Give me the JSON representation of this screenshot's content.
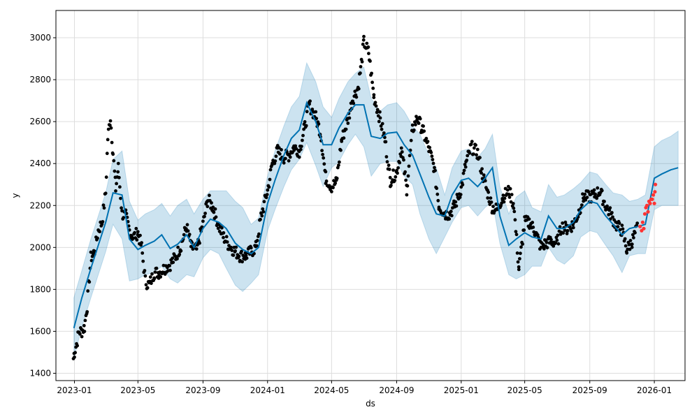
{
  "chart_data": {
    "type": "scatter",
    "xlabel": "ds",
    "ylabel": "y",
    "x_range": [
      "2022-11-27",
      "2026-02-28"
    ],
    "ylim": [
      1365,
      3130
    ],
    "grid": true,
    "x_ticks": [
      "2023-01",
      "2023-05",
      "2023-09",
      "2024-01",
      "2024-05",
      "2024-09",
      "2025-01",
      "2025-05",
      "2025-09",
      "2026-01"
    ],
    "y_ticks": [
      1400,
      1600,
      1800,
      2000,
      2200,
      2400,
      2600,
      2800,
      3000
    ],
    "colors": {
      "actual": "#000000",
      "recent": "#ff3333",
      "forecast": "#0072b2",
      "band": "#0072b2"
    },
    "forecast": {
      "dates": [
        "2022-12-31",
        "2023-01-15",
        "2023-02-01",
        "2023-02-15",
        "2023-03-01",
        "2023-03-15",
        "2023-04-01",
        "2023-04-15",
        "2023-05-01",
        "2023-05-15",
        "2023-06-01",
        "2023-06-15",
        "2023-07-01",
        "2023-07-15",
        "2023-08-01",
        "2023-08-15",
        "2023-09-01",
        "2023-09-15",
        "2023-10-01",
        "2023-10-15",
        "2023-11-01",
        "2023-11-15",
        "2023-12-01",
        "2023-12-15",
        "2024-01-01",
        "2024-01-15",
        "2024-02-01",
        "2024-02-15",
        "2024-03-01",
        "2024-03-15",
        "2024-04-01",
        "2024-04-15",
        "2024-05-01",
        "2024-05-15",
        "2024-06-01",
        "2024-06-15",
        "2024-07-01",
        "2024-07-15",
        "2024-08-01",
        "2024-08-15",
        "2024-09-01",
        "2024-09-15",
        "2024-10-01",
        "2024-10-15",
        "2024-11-01",
        "2024-11-15",
        "2024-12-01",
        "2024-12-15",
        "2025-01-01",
        "2025-01-15",
        "2025-02-01",
        "2025-02-15",
        "2025-03-01",
        "2025-03-15",
        "2025-04-01",
        "2025-04-15",
        "2025-05-01",
        "2025-05-15",
        "2025-06-01",
        "2025-06-15",
        "2025-07-01",
        "2025-07-15",
        "2025-08-01",
        "2025-08-15",
        "2025-09-01",
        "2025-09-15",
        "2025-10-01",
        "2025-10-15",
        "2025-11-01",
        "2025-11-15",
        "2025-12-01",
        "2025-12-15",
        "2026-01-01",
        "2026-01-15",
        "2026-02-01",
        "2026-02-15"
      ],
      "yhat": [
        1615,
        1760,
        1900,
        2010,
        2120,
        2260,
        2250,
        2040,
        1990,
        2010,
        2030,
        2060,
        1995,
        2015,
        2060,
        2000,
        2090,
        2135,
        2120,
        2090,
        2020,
        1990,
        1970,
        2000,
        2210,
        2320,
        2440,
        2520,
        2560,
        2690,
        2600,
        2490,
        2490,
        2570,
        2640,
        2680,
        2680,
        2530,
        2520,
        2545,
        2550,
        2490,
        2440,
        2350,
        2240,
        2160,
        2150,
        2250,
        2320,
        2330,
        2290,
        2330,
        2380,
        2150,
        2010,
        2040,
        2070,
        2050,
        2040,
        2150,
        2090,
        2090,
        2120,
        2180,
        2220,
        2210,
        2150,
        2110,
        2060,
        2090,
        2100,
        2110,
        2330,
        2350,
        2370,
        2380
      ],
      "lower": [
        1470,
        1620,
        1760,
        1870,
        1980,
        2110,
        2040,
        1840,
        1850,
        1870,
        1880,
        1910,
        1850,
        1830,
        1870,
        1860,
        1950,
        1990,
        1970,
        1900,
        1820,
        1790,
        1830,
        1870,
        2080,
        2180,
        2290,
        2370,
        2420,
        2500,
        2390,
        2290,
        2380,
        2410,
        2490,
        2540,
        2480,
        2340,
        2400,
        2410,
        2410,
        2340,
        2300,
        2160,
        2040,
        1970,
        2050,
        2120,
        2190,
        2200,
        2150,
        2190,
        2220,
        2020,
        1870,
        1850,
        1870,
        1910,
        1910,
        2000,
        1940,
        1920,
        1960,
        2050,
        2080,
        2070,
        2010,
        1960,
        1880,
        1960,
        1970,
        1970,
        2180,
        2200,
        2200,
        2200
      ],
      "upper": [
        1760,
        1890,
        2040,
        2150,
        2260,
        2420,
        2460,
        2220,
        2130,
        2160,
        2180,
        2210,
        2150,
        2200,
        2230,
        2160,
        2230,
        2270,
        2270,
        2270,
        2220,
        2190,
        2110,
        2140,
        2340,
        2460,
        2580,
        2670,
        2720,
        2880,
        2790,
        2670,
        2620,
        2710,
        2790,
        2830,
        2860,
        2710,
        2650,
        2680,
        2690,
        2650,
        2580,
        2540,
        2440,
        2380,
        2250,
        2380,
        2460,
        2470,
        2430,
        2470,
        2540,
        2290,
        2160,
        2240,
        2270,
        2190,
        2170,
        2300,
        2240,
        2250,
        2280,
        2310,
        2360,
        2350,
        2300,
        2260,
        2250,
        2220,
        2230,
        2250,
        2480,
        2510,
        2530,
        2555
      ]
    },
    "actual_anchors": {
      "dates": [
        "2022-12-30",
        "2023-01-01",
        "2023-01-05",
        "2023-01-10",
        "2023-01-15",
        "2023-01-20",
        "2023-01-25",
        "2023-02-01",
        "2023-02-08",
        "2023-02-15",
        "2023-02-22",
        "2023-03-01",
        "2023-03-05",
        "2023-03-10",
        "2023-03-15",
        "2023-03-20",
        "2023-03-25",
        "2023-04-01",
        "2023-04-08",
        "2023-04-15",
        "2023-04-22",
        "2023-05-01",
        "2023-05-08",
        "2023-05-15",
        "2023-05-22",
        "2023-06-01",
        "2023-06-10",
        "2023-06-20",
        "2023-07-01",
        "2023-07-10",
        "2023-07-20",
        "2023-08-01",
        "2023-08-10",
        "2023-08-20",
        "2023-09-01",
        "2023-09-10",
        "2023-09-20",
        "2023-10-01",
        "2023-10-10",
        "2023-10-20",
        "2023-11-01",
        "2023-11-10",
        "2023-11-20",
        "2023-12-01",
        "2023-12-10",
        "2023-12-20",
        "2024-01-01",
        "2024-01-10",
        "2024-01-20",
        "2024-02-01",
        "2024-02-10",
        "2024-02-20",
        "2024-03-01",
        "2024-03-10",
        "2024-03-20",
        "2024-04-01",
        "2024-04-10",
        "2024-04-20",
        "2024-05-01",
        "2024-05-10",
        "2024-05-20",
        "2024-06-01",
        "2024-06-10",
        "2024-06-20",
        "2024-06-25",
        "2024-07-01",
        "2024-07-10",
        "2024-07-20",
        "2024-08-01",
        "2024-08-10",
        "2024-08-20",
        "2024-09-01",
        "2024-09-10",
        "2024-09-20",
        "2024-10-01",
        "2024-10-10",
        "2024-10-20",
        "2024-11-01",
        "2024-11-10",
        "2024-11-20",
        "2024-12-01",
        "2024-12-10",
        "2024-12-20",
        "2025-01-01",
        "2025-01-10",
        "2025-01-20",
        "2025-02-01",
        "2025-02-10",
        "2025-02-20",
        "2025-03-01",
        "2025-03-10",
        "2025-03-20",
        "2025-04-01",
        "2025-04-10",
        "2025-04-20",
        "2025-05-01",
        "2025-05-10",
        "2025-05-20",
        "2025-06-01",
        "2025-06-10",
        "2025-06-20",
        "2025-07-01",
        "2025-07-10",
        "2025-07-20",
        "2025-08-01",
        "2025-08-10",
        "2025-08-20",
        "2025-09-01",
        "2025-09-10",
        "2025-09-20",
        "2025-10-01",
        "2025-10-10",
        "2025-10-20",
        "2025-11-01",
        "2025-11-10",
        "2025-11-20",
        "2025-12-01"
      ],
      "values": [
        1470,
        1500,
        1540,
        1600,
        1600,
        1620,
        1720,
        1950,
        1980,
        2080,
        2120,
        2260,
        2520,
        2620,
        2450,
        2280,
        2380,
        2160,
        2150,
        2080,
        2050,
        2070,
        2000,
        1840,
        1820,
        1880,
        1880,
        1900,
        1920,
        1950,
        2000,
        2100,
        2000,
        1990,
        2110,
        2230,
        2190,
        2100,
        2050,
        2010,
        1980,
        1960,
        1960,
        1980,
        2000,
        2150,
        2270,
        2400,
        2460,
        2430,
        2440,
        2480,
        2460,
        2560,
        2680,
        2620,
        2550,
        2330,
        2290,
        2310,
        2510,
        2610,
        2710,
        2760,
        2850,
        2980,
        2930,
        2720,
        2610,
        2510,
        2320,
        2360,
        2470,
        2280,
        2560,
        2620,
        2560,
        2470,
        2390,
        2200,
        2160,
        2160,
        2200,
        2280,
        2400,
        2480,
        2450,
        2350,
        2260,
        2190,
        2180,
        2240,
        2270,
        2210,
        1900,
        2120,
        2120,
        2080,
        2000,
        2020,
        2030,
        2020,
        2100,
        2090,
        2110,
        2160,
        2240,
        2240,
        2250,
        2270,
        2200,
        2160,
        2110,
        2080,
        1990,
        2030,
        2100
      ],
      "spread": 30
    },
    "recent_points": {
      "dates": [
        "2025-12-05",
        "2025-12-08",
        "2025-12-10",
        "2025-12-12",
        "2025-12-14",
        "2025-12-16",
        "2025-12-18",
        "2025-12-20",
        "2025-12-22",
        "2025-12-24",
        "2025-12-26",
        "2025-12-28",
        "2025-12-30",
        "2026-01-01",
        "2026-01-02",
        "2026-01-03"
      ],
      "values": [
        2100,
        2080,
        2120,
        2090,
        2160,
        2190,
        2200,
        2170,
        2220,
        2210,
        2230,
        2230,
        2250,
        2210,
        2265,
        2300
      ]
    }
  }
}
